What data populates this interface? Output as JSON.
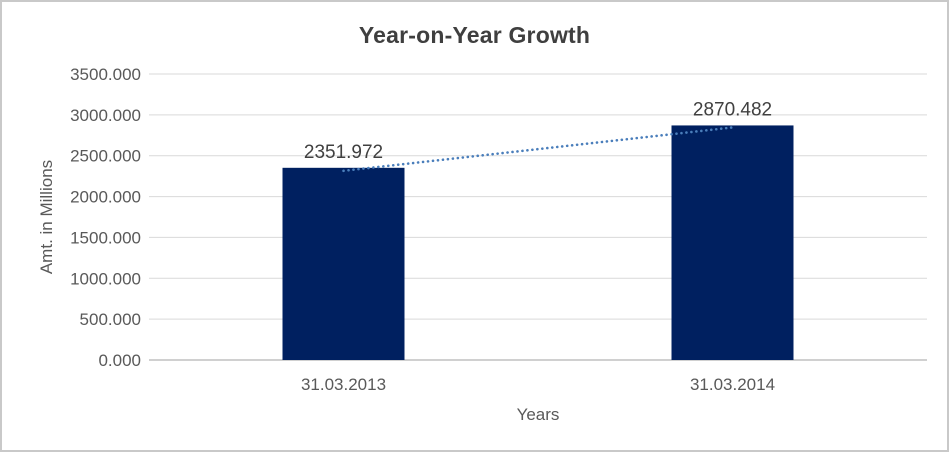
{
  "chart_data": {
    "type": "bar",
    "title": "Year-on-Year Growth",
    "xlabel": "Years",
    "ylabel": "Amt. in Millions",
    "categories": [
      "31.03.2013",
      "31.03.2014"
    ],
    "values": [
      2351.972,
      2870.482
    ],
    "data_labels": [
      "2351.972",
      "2870.482"
    ],
    "ylim": [
      0,
      3500
    ],
    "y_tick_values": [
      0,
      500,
      1000,
      1500,
      2000,
      2500,
      3000,
      3500
    ],
    "y_ticks": [
      "0.000",
      "500.000",
      "1000.000",
      "1500.000",
      "2000.000",
      "2500.000",
      "3000.000",
      "3500.000"
    ],
    "grid": true,
    "legend": "none",
    "trendline": {
      "style": "dotted",
      "connects": [
        "31.03.2013",
        "31.03.2014"
      ]
    },
    "colors": {
      "bar": "#002060",
      "trendline": "#4a7ebb",
      "gridline": "#d9d9d9",
      "axis_line": "#c0c0c0",
      "tick_text": "#595959",
      "data_label_text": "#404040",
      "title_text": "#3f3f3f",
      "frame_border": "#c9c9c9"
    }
  }
}
